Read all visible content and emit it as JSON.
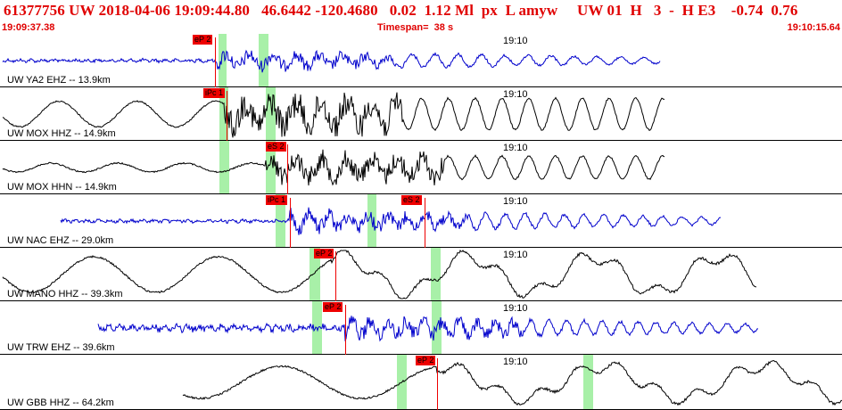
{
  "header": {
    "main": "61377756 UW 2018-04-06 19:09:44.80   46.6442 -120.4680   0.02  1.12 Ml  px  L amyw     UW 01  H   3  -  H E3    -0.74  0.76",
    "start_time": "19:09:37.38",
    "timespan": "Timespan=  38 s",
    "end_time": "19:10:15.64"
  },
  "colors": {
    "header_red": "#e00000",
    "blue_trace": "#0000cc",
    "black_trace": "#000000",
    "pick_bg": "#ee0000",
    "window_green": "#a8f0a8"
  },
  "traces": [
    {
      "label": "UW YA2 EHZ -- 13.9km",
      "time_label": "19:10",
      "color": "blue",
      "picks": [
        {
          "label": "eP 2"
        }
      ]
    },
    {
      "label": "UW MOX HHZ -- 14.9km",
      "time_label": "19:10",
      "color": "black",
      "picks": [
        {
          "label": "iPc 1"
        }
      ]
    },
    {
      "label": "UW MOX HHN -- 14.9km",
      "time_label": "19:10",
      "color": "black",
      "picks": [
        {
          "label": "eS 2"
        }
      ]
    },
    {
      "label": "UW NAC EHZ -- 29.0km",
      "time_label": "19:10",
      "color": "blue",
      "picks": [
        {
          "label": "iPc 1"
        },
        {
          "label": "eS 2"
        }
      ]
    },
    {
      "label": "UW MANO HHZ -- 39.3km",
      "time_label": "19:10",
      "color": "black",
      "picks": [
        {
          "label": "eP 2"
        }
      ]
    },
    {
      "label": "UW TRW EHZ -- 39.6km",
      "time_label": "19:10",
      "color": "blue",
      "picks": [
        {
          "label": "eP 2"
        }
      ]
    },
    {
      "label": "UW GBB HHZ -- 64.2km",
      "time_label": "19:10",
      "color": "black",
      "picks": [
        {
          "label": "eP 2"
        }
      ]
    }
  ]
}
